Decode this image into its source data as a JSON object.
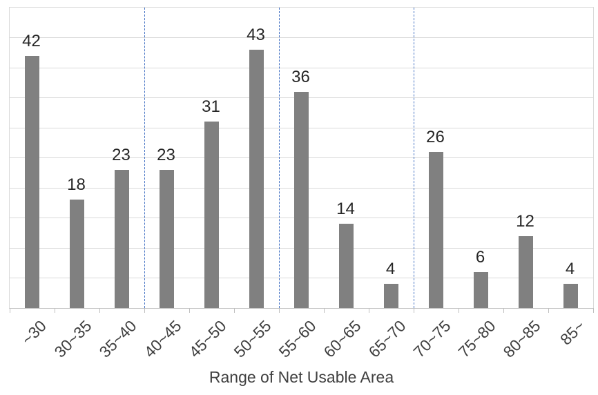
{
  "chart_data": {
    "type": "bar",
    "title": "",
    "xlabel": "Range of Net Usable Area",
    "ylabel": "",
    "categories": [
      "~30",
      "30~35",
      "35~40",
      "40~45",
      "45~50",
      "50~55",
      "55~60",
      "60~65",
      "65~70",
      "70~75",
      "75~80",
      "80~85",
      "85~"
    ],
    "values": [
      42,
      18,
      23,
      23,
      31,
      43,
      36,
      14,
      4,
      26,
      6,
      12,
      4
    ],
    "ylim": [
      0,
      50
    ],
    "gridline_step": 5,
    "grid": "horizontal-only",
    "y_axis_labels_visible": false,
    "legend": "none",
    "separators_before_category_index": [
      3,
      6,
      9
    ],
    "separator_meaning": "dashed boundary lines at area values 40, 55, 70",
    "colors": {
      "bar": "#808080",
      "gridline": "#D9D9D9",
      "axis_line": "#BFBFBF",
      "separator": "#4472C4",
      "value_label": "#262626",
      "category_label": "#404040",
      "axis_title": "#404040",
      "background": "#FFFFFF"
    }
  }
}
